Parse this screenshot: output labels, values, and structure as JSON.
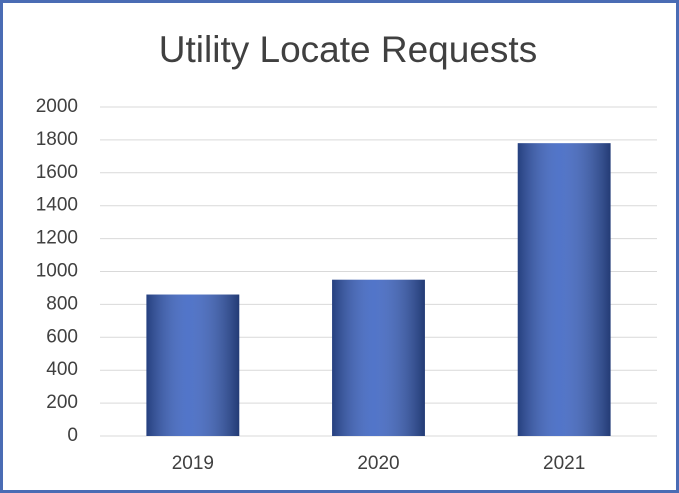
{
  "chart_data": {
    "type": "bar",
    "title": "Utility Locate Requests",
    "categories": [
      "2019",
      "2020",
      "2021"
    ],
    "values": [
      860,
      950,
      1780
    ],
    "color": "#3a62c2",
    "ylim": [
      0,
      2000
    ],
    "yticks": [
      0,
      200,
      400,
      600,
      800,
      1000,
      1200,
      1400,
      1600,
      1800,
      2000
    ],
    "grid": true
  }
}
